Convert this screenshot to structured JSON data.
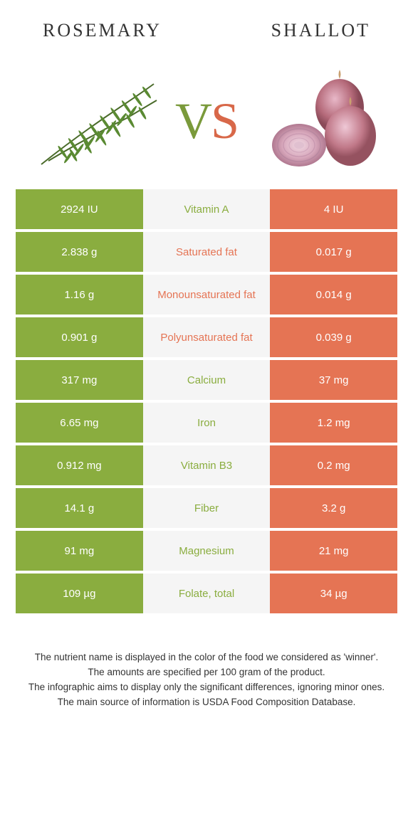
{
  "left_title": "ROSEMARY",
  "right_title": "SHALLOT",
  "vs": {
    "v": "V",
    "s": "S"
  },
  "colors": {
    "rosemary": "#8aad3f",
    "shallot": "#e57454",
    "mid_bg": "#f5f5f5",
    "mid_text_winner_left": "#8aad3f",
    "mid_text_winner_right": "#e57454"
  },
  "rows": [
    {
      "nutrient": "Vitamin A",
      "left": "2924 IU",
      "right": "4 IU",
      "winner": "left"
    },
    {
      "nutrient": "Saturated fat",
      "left": "2.838 g",
      "right": "0.017 g",
      "winner": "right"
    },
    {
      "nutrient": "Monounsaturated fat",
      "left": "1.16 g",
      "right": "0.014 g",
      "winner": "right"
    },
    {
      "nutrient": "Polyunsaturated fat",
      "left": "0.901 g",
      "right": "0.039 g",
      "winner": "right"
    },
    {
      "nutrient": "Calcium",
      "left": "317 mg",
      "right": "37 mg",
      "winner": "left"
    },
    {
      "nutrient": "Iron",
      "left": "6.65 mg",
      "right": "1.2 mg",
      "winner": "left"
    },
    {
      "nutrient": "Vitamin B3",
      "left": "0.912 mg",
      "right": "0.2 mg",
      "winner": "left"
    },
    {
      "nutrient": "Fiber",
      "left": "14.1 g",
      "right": "3.2 g",
      "winner": "left"
    },
    {
      "nutrient": "Magnesium",
      "left": "91 mg",
      "right": "21 mg",
      "winner": "left"
    },
    {
      "nutrient": "Folate, total",
      "left": "109 µg",
      "right": "34 µg",
      "winner": "left"
    }
  ],
  "footer_lines": [
    "The nutrient name is displayed in the color of the food we considered as 'winner'.",
    "The amounts are specified per 100 gram of the product.",
    "The infographic aims to display only the significant differences, ignoring minor ones.",
    "The main source of information is USDA Food Composition Database."
  ]
}
